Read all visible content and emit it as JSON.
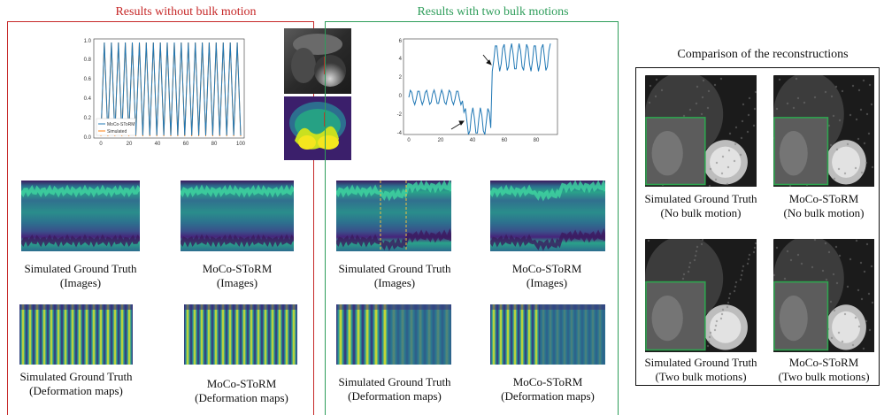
{
  "panels": {
    "left": {
      "title": "Results without bulk motion",
      "color": "#c62828"
    },
    "middle": {
      "title": "Results with two bulk motions",
      "color": "#2e9d5a"
    },
    "right": {
      "title": "Comparison of the reconstructions",
      "color": "#111111"
    }
  },
  "left_plot": {
    "legend": [
      "MoCo-SToRM",
      "Simulated"
    ],
    "series_colors": [
      "#1f77b4",
      "#ff7f0e"
    ],
    "x_ticks": [
      "0",
      "20",
      "40",
      "60",
      "80",
      "100"
    ],
    "y_ticks": [
      "0.0",
      "0.2",
      "0.4",
      "0.6",
      "0.8",
      "1.0"
    ]
  },
  "mid_plot": {
    "series_color": "#1f77b4",
    "x_ticks": [
      "0",
      "20",
      "40",
      "60",
      "80"
    ],
    "y_ticks": [
      "-4",
      "-2",
      "0",
      "2",
      "4",
      "6"
    ]
  },
  "captions": {
    "left_gt_images": [
      "Simulated Ground Truth",
      "(Images)"
    ],
    "left_moco_images": [
      "MoCo-SToRM",
      "(Images)"
    ],
    "left_gt_deform": [
      "Simulated Ground Truth",
      "(Deformation maps)"
    ],
    "left_moco_deform": [
      "MoCo-SToRM",
      "(Deformation maps)"
    ],
    "mid_gt_images": [
      "Simulated Ground Truth",
      "(Images)"
    ],
    "mid_moco_images": [
      "MoCo-SToRM",
      "(Images)"
    ],
    "mid_gt_deform": [
      "Simulated Ground Truth",
      "(Deformation maps)"
    ],
    "mid_moco_deform": [
      "MoCo-SToRM",
      "(Deformation maps)"
    ],
    "right_gt_no": [
      "Simulated Ground Truth",
      "(No bulk motion)"
    ],
    "right_moco_no": [
      "MoCo-SToRM",
      "(No bulk motion)"
    ],
    "right_gt_two": [
      "Simulated Ground Truth",
      "(Two bulk motions)"
    ],
    "right_moco_two": [
      "MoCo-SToRM",
      "(Two bulk motions)"
    ]
  }
}
